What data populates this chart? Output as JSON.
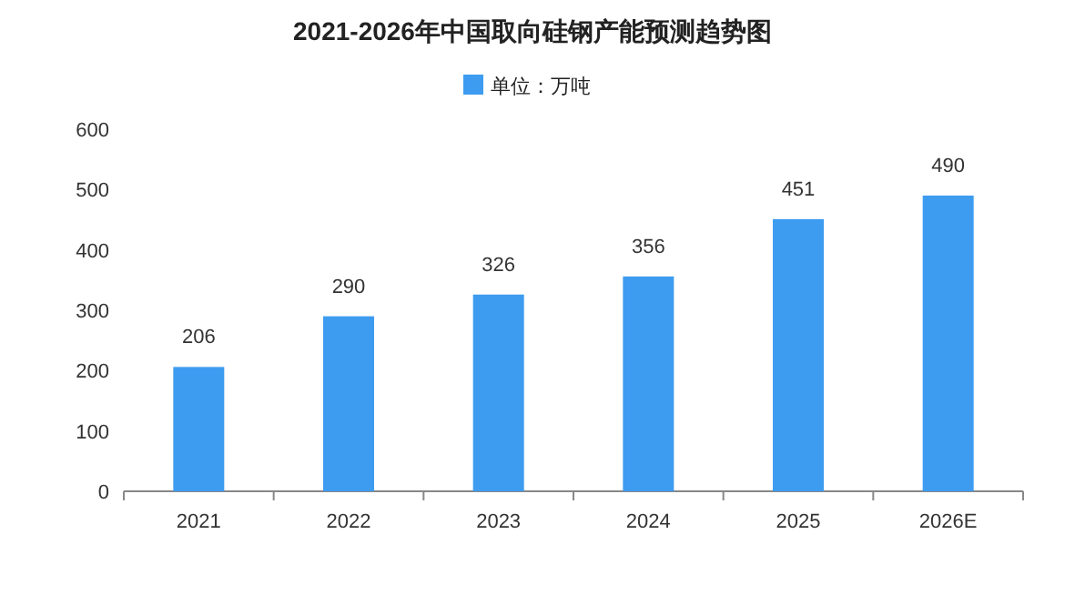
{
  "chart_data": {
    "type": "bar",
    "title": "2021-2026年中国取向硅钢产能预测趋势图",
    "categories": [
      "2021",
      "2022",
      "2023",
      "2024",
      "2025",
      "2026E"
    ],
    "series": [
      {
        "name": "单位：万吨",
        "color": "#3d9cf0",
        "values": [
          206,
          290,
          326,
          356,
          451,
          490
        ]
      }
    ],
    "ylim": [
      0,
      600
    ],
    "yticks": [
      0,
      100,
      200,
      300,
      400,
      500,
      600
    ],
    "data_labels": true,
    "legend": "top"
  }
}
